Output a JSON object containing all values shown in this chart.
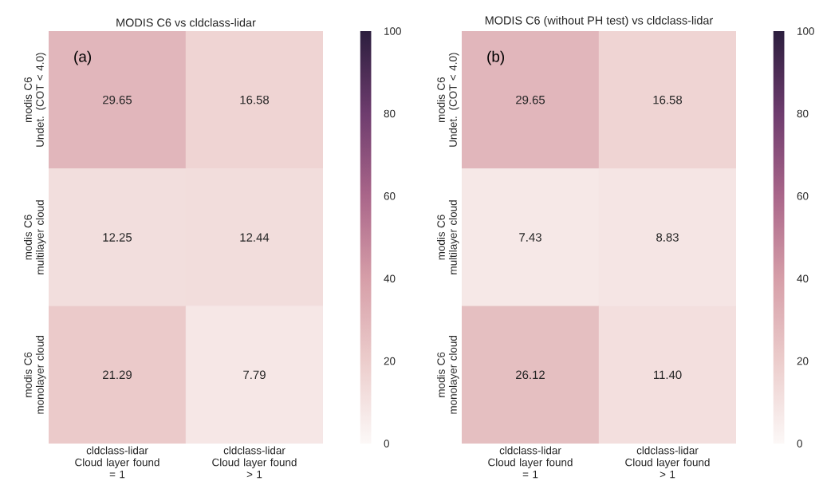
{
  "chart_data": [
    {
      "type": "heatmap",
      "title": "MODIS C6 vs cldclass-lidar",
      "annotations": [
        "(a)"
      ],
      "categories": [
        "cldclass-lidar\nCloud layer found\n= 1",
        "cldclass-lidar\nCloud layer found\n> 1"
      ],
      "y_categories": [
        "modis C6\nUndet. (COT < 4.0)",
        "modis C6\nmultilayer cloud",
        "modis C6\nmonolayer cloud"
      ],
      "cells": [
        [
          29.65,
          16.58
        ],
        [
          12.25,
          12.44
        ],
        [
          21.29,
          7.79
        ]
      ],
      "cell_labels": [
        [
          "29.65",
          "16.58"
        ],
        [
          "12.25",
          "12.44"
        ],
        [
          "21.29",
          "7.79"
        ]
      ],
      "clim": [
        0,
        100
      ],
      "cticks": [
        0,
        20,
        40,
        60,
        80,
        100
      ]
    },
    {
      "type": "heatmap",
      "title": "MODIS C6 (without PH test) vs cldclass-lidar",
      "annotations": [
        "(b)"
      ],
      "categories": [
        "cldclass-lidar\nCloud layer found\n= 1",
        "cldclass-lidar\nCloud layer found\n> 1"
      ],
      "y_categories": [
        "modis C6\nUndet. (COT < 4.0)",
        "modis C6\nmultilayer cloud",
        "modis C6\nmonolayer cloud"
      ],
      "cells": [
        [
          29.65,
          16.58
        ],
        [
          7.43,
          8.83
        ],
        [
          26.12,
          11.4
        ]
      ],
      "cell_labels": [
        [
          "29.65",
          "16.58"
        ],
        [
          "7.43",
          "8.83"
        ],
        [
          "26.12",
          "11.40"
        ]
      ],
      "clim": [
        0,
        100
      ],
      "cticks": [
        0,
        20,
        40,
        60,
        80,
        100
      ]
    }
  ]
}
